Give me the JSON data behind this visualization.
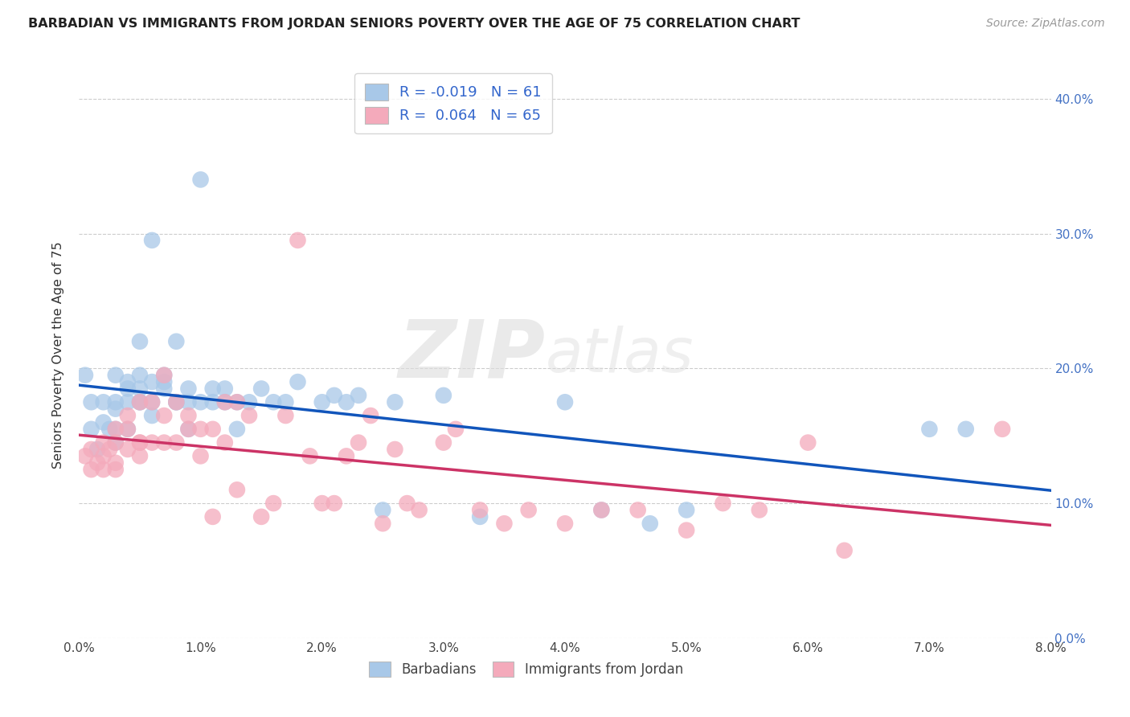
{
  "title": "BARBADIAN VS IMMIGRANTS FROM JORDAN SENIORS POVERTY OVER THE AGE OF 75 CORRELATION CHART",
  "source": "Source: ZipAtlas.com",
  "ylabel": "Seniors Poverty Over the Age of 75",
  "x_ticks": [
    0.0,
    0.01,
    0.02,
    0.03,
    0.04,
    0.05,
    0.06,
    0.07,
    0.08
  ],
  "y_ticks": [
    0.0,
    0.1,
    0.2,
    0.3,
    0.4
  ],
  "xlim": [
    0.0,
    0.08
  ],
  "ylim": [
    0.0,
    0.42
  ],
  "legend_R_blue": "-0.019",
  "legend_N_blue": "61",
  "legend_R_pink": "0.064",
  "legend_N_pink": "65",
  "legend_label_blue": "Barbadians",
  "legend_label_pink": "Immigrants from Jordan",
  "blue_color": "#A8C8E8",
  "pink_color": "#F4AABB",
  "blue_line_color": "#1155BB",
  "pink_line_color": "#CC3366",
  "watermark_zip": "ZIP",
  "watermark_atlas": "atlas",
  "blue_x": [
    0.0005,
    0.001,
    0.001,
    0.0015,
    0.002,
    0.002,
    0.0025,
    0.003,
    0.003,
    0.003,
    0.003,
    0.003,
    0.004,
    0.004,
    0.004,
    0.004,
    0.005,
    0.005,
    0.005,
    0.005,
    0.005,
    0.006,
    0.006,
    0.006,
    0.006,
    0.007,
    0.007,
    0.007,
    0.008,
    0.008,
    0.008,
    0.009,
    0.009,
    0.009,
    0.01,
    0.01,
    0.011,
    0.011,
    0.012,
    0.012,
    0.013,
    0.013,
    0.014,
    0.015,
    0.016,
    0.017,
    0.018,
    0.02,
    0.021,
    0.022,
    0.023,
    0.025,
    0.026,
    0.03,
    0.033,
    0.04,
    0.043,
    0.047,
    0.05,
    0.07,
    0.073
  ],
  "blue_y": [
    0.195,
    0.175,
    0.155,
    0.14,
    0.16,
    0.175,
    0.155,
    0.17,
    0.175,
    0.155,
    0.145,
    0.195,
    0.185,
    0.175,
    0.155,
    0.19,
    0.175,
    0.22,
    0.195,
    0.185,
    0.175,
    0.295,
    0.19,
    0.175,
    0.165,
    0.19,
    0.195,
    0.185,
    0.175,
    0.175,
    0.22,
    0.185,
    0.175,
    0.155,
    0.34,
    0.175,
    0.185,
    0.175,
    0.175,
    0.185,
    0.175,
    0.155,
    0.175,
    0.185,
    0.175,
    0.175,
    0.19,
    0.175,
    0.18,
    0.175,
    0.18,
    0.095,
    0.175,
    0.18,
    0.09,
    0.175,
    0.095,
    0.085,
    0.095,
    0.155,
    0.155
  ],
  "pink_x": [
    0.0005,
    0.001,
    0.001,
    0.0015,
    0.002,
    0.002,
    0.002,
    0.0025,
    0.003,
    0.003,
    0.003,
    0.003,
    0.004,
    0.004,
    0.004,
    0.005,
    0.005,
    0.005,
    0.005,
    0.006,
    0.006,
    0.007,
    0.007,
    0.007,
    0.008,
    0.008,
    0.009,
    0.009,
    0.01,
    0.01,
    0.011,
    0.011,
    0.012,
    0.012,
    0.013,
    0.013,
    0.014,
    0.015,
    0.016,
    0.017,
    0.018,
    0.019,
    0.02,
    0.021,
    0.022,
    0.023,
    0.024,
    0.025,
    0.026,
    0.027,
    0.028,
    0.03,
    0.031,
    0.033,
    0.035,
    0.037,
    0.04,
    0.043,
    0.046,
    0.05,
    0.053,
    0.056,
    0.06,
    0.063,
    0.076
  ],
  "pink_y": [
    0.135,
    0.125,
    0.14,
    0.13,
    0.125,
    0.145,
    0.135,
    0.14,
    0.13,
    0.125,
    0.145,
    0.155,
    0.14,
    0.155,
    0.165,
    0.145,
    0.175,
    0.145,
    0.135,
    0.175,
    0.145,
    0.145,
    0.195,
    0.165,
    0.175,
    0.145,
    0.155,
    0.165,
    0.135,
    0.155,
    0.09,
    0.155,
    0.175,
    0.145,
    0.175,
    0.11,
    0.165,
    0.09,
    0.1,
    0.165,
    0.295,
    0.135,
    0.1,
    0.1,
    0.135,
    0.145,
    0.165,
    0.085,
    0.14,
    0.1,
    0.095,
    0.145,
    0.155,
    0.095,
    0.085,
    0.095,
    0.085,
    0.095,
    0.095,
    0.08,
    0.1,
    0.095,
    0.145,
    0.065,
    0.155
  ]
}
